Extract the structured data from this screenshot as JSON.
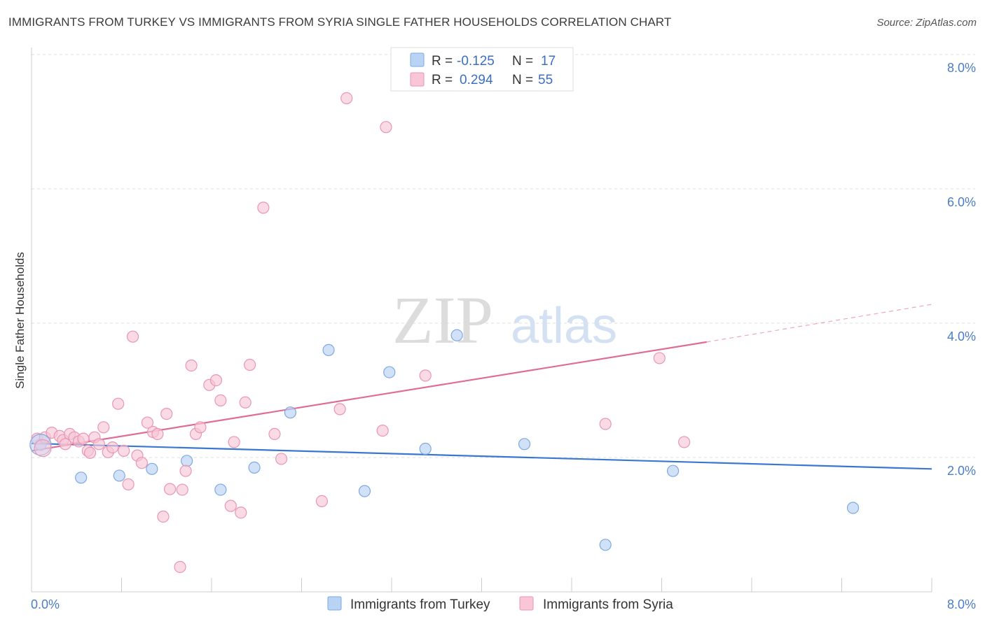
{
  "title": "IMMIGRANTS FROM TURKEY VS IMMIGRANTS FROM SYRIA SINGLE FATHER HOUSEHOLDS CORRELATION CHART",
  "source": "Source: ZipAtlas.com",
  "watermark": {
    "zip": "ZIP",
    "atlas": "atlas"
  },
  "colors": {
    "turkey_fill": "#b9d3f5",
    "turkey_stroke": "#7fa8e0",
    "turkey_line": "#3a78d0",
    "syria_fill": "#f8c6d6",
    "syria_stroke": "#e896b2",
    "syria_line": "#e06b97",
    "grid": "#dddddd",
    "axis_label": "#4a7cc9"
  },
  "legend": {
    "turkey": {
      "r_label": "R =",
      "r_value": "-0.125",
      "n_label": "N =",
      "n_value": "17"
    },
    "syria": {
      "r_label": "R =",
      "r_value": "0.294",
      "n_label": "N =",
      "n_value": "55"
    }
  },
  "chart_data": {
    "type": "scatter",
    "title": "IMMIGRANTS FROM TURKEY VS IMMIGRANTS FROM SYRIA SINGLE FATHER HOUSEHOLDS CORRELATION CHART",
    "xlabel": "",
    "ylabel": "Single Father Households",
    "xlim": [
      0,
      8
    ],
    "ylim": [
      0,
      8
    ],
    "x_tick_labels": [
      "0.0%",
      "8.0%"
    ],
    "y_ticks": [
      2,
      4,
      6,
      8
    ],
    "y_tick_labels": [
      "2.0%",
      "4.0%",
      "6.0%",
      "8.0%"
    ],
    "grid": true,
    "legend_position": "top-center",
    "series": [
      {
        "name": "Immigrants from Turkey",
        "color": "#b9d3f5",
        "points": [
          [
            0.08,
            2.19
          ],
          [
            0.44,
            1.7
          ],
          [
            0.78,
            1.73
          ],
          [
            1.07,
            1.83
          ],
          [
            1.38,
            1.95
          ],
          [
            1.68,
            1.52
          ],
          [
            1.98,
            1.85
          ],
          [
            2.3,
            2.67
          ],
          [
            2.64,
            3.6
          ],
          [
            2.96,
            1.5
          ],
          [
            3.18,
            3.27
          ],
          [
            3.5,
            2.13
          ],
          [
            3.78,
            3.82
          ],
          [
            4.38,
            2.2
          ],
          [
            5.1,
            0.7
          ],
          [
            5.7,
            1.8
          ],
          [
            7.3,
            1.25
          ]
        ],
        "trend": {
          "x": [
            0.0,
            8.0
          ],
          "y": [
            2.21,
            1.83
          ]
        }
      },
      {
        "name": "Immigrants from Syria",
        "color": "#f8c6d6",
        "points": [
          [
            0.05,
            2.28
          ],
          [
            0.12,
            2.3
          ],
          [
            0.18,
            2.37
          ],
          [
            0.25,
            2.32
          ],
          [
            0.28,
            2.26
          ],
          [
            0.3,
            2.2
          ],
          [
            0.34,
            2.35
          ],
          [
            0.38,
            2.3
          ],
          [
            0.42,
            2.24
          ],
          [
            0.46,
            2.28
          ],
          [
            0.5,
            2.1
          ],
          [
            0.52,
            2.07
          ],
          [
            0.56,
            2.3
          ],
          [
            0.6,
            2.2
          ],
          [
            0.64,
            2.45
          ],
          [
            0.68,
            2.08
          ],
          [
            0.72,
            2.15
          ],
          [
            0.77,
            2.8
          ],
          [
            0.82,
            2.1
          ],
          [
            0.86,
            1.6
          ],
          [
            0.9,
            3.8
          ],
          [
            0.94,
            2.03
          ],
          [
            0.98,
            1.92
          ],
          [
            1.03,
            2.52
          ],
          [
            1.08,
            2.38
          ],
          [
            1.12,
            2.35
          ],
          [
            1.17,
            1.12
          ],
          [
            1.2,
            2.65
          ],
          [
            1.23,
            1.53
          ],
          [
            1.32,
            0.37
          ],
          [
            1.34,
            1.52
          ],
          [
            1.37,
            1.8
          ],
          [
            1.42,
            3.37
          ],
          [
            1.46,
            2.35
          ],
          [
            1.5,
            2.45
          ],
          [
            1.58,
            3.08
          ],
          [
            1.64,
            3.15
          ],
          [
            1.68,
            2.85
          ],
          [
            1.77,
            1.28
          ],
          [
            1.8,
            2.23
          ],
          [
            1.86,
            1.18
          ],
          [
            1.9,
            2.82
          ],
          [
            1.94,
            3.38
          ],
          [
            2.06,
            5.72
          ],
          [
            2.16,
            2.35
          ],
          [
            2.22,
            1.98
          ],
          [
            2.58,
            1.35
          ],
          [
            2.74,
            2.72
          ],
          [
            2.8,
            7.35
          ],
          [
            3.12,
            2.4
          ],
          [
            3.15,
            6.92
          ],
          [
            3.5,
            3.22
          ],
          [
            5.1,
            2.5
          ],
          [
            5.58,
            3.48
          ],
          [
            5.8,
            2.23
          ]
        ],
        "trend": {
          "x": [
            0.0,
            6.0
          ],
          "y": [
            2.1,
            3.72
          ],
          "dashed_x": [
            6.0,
            8.0
          ],
          "dashed_y": [
            3.72,
            4.28
          ]
        }
      }
    ]
  }
}
